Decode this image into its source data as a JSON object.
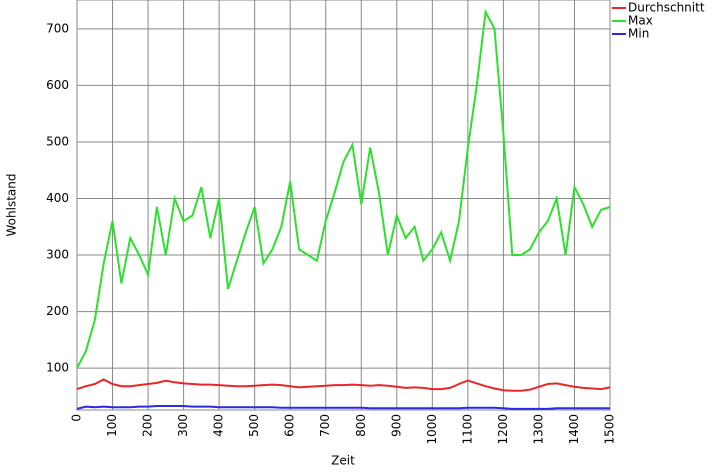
{
  "chart_data": {
    "type": "line",
    "x_label": "Zeit",
    "y_label": "Wohlstand",
    "x": [
      0,
      25,
      50,
      75,
      100,
      125,
      150,
      175,
      200,
      225,
      250,
      275,
      300,
      325,
      350,
      375,
      400,
      425,
      450,
      475,
      500,
      525,
      550,
      575,
      600,
      625,
      650,
      675,
      700,
      725,
      750,
      775,
      800,
      825,
      850,
      875,
      900,
      925,
      950,
      975,
      1000,
      1025,
      1050,
      1075,
      1100,
      1125,
      1150,
      1175,
      1200,
      1225,
      1250,
      1275,
      1300,
      1325,
      1350,
      1375,
      1400,
      1425,
      1450,
      1475,
      1500
    ],
    "series": [
      {
        "name": "Durchschnitt",
        "color": "#e5282a",
        "values": [
          63,
          68,
          72,
          80,
          72,
          68,
          68,
          70,
          72,
          74,
          78,
          75,
          73,
          72,
          71,
          71,
          70,
          69,
          68,
          68,
          69,
          70,
          71,
          70,
          68,
          66,
          67,
          68,
          69,
          70,
          70,
          71,
          70,
          69,
          70,
          69,
          67,
          65,
          66,
          65,
          63,
          63,
          65,
          72,
          78,
          73,
          68,
          64,
          61,
          60,
          60,
          62,
          67,
          72,
          73,
          70,
          67,
          65,
          64,
          63,
          66
        ]
      },
      {
        "name": "Max",
        "color": "#2ee02e",
        "values": [
          100,
          130,
          185,
          285,
          360,
          250,
          330,
          300,
          265,
          385,
          300,
          400,
          360,
          370,
          420,
          330,
          400,
          240,
          290,
          340,
          385,
          285,
          310,
          350,
          430,
          310,
          300,
          290,
          360,
          410,
          465,
          495,
          390,
          490,
          410,
          300,
          370,
          330,
          350,
          290,
          310,
          340,
          290,
          360,
          490,
          600,
          730,
          700,
          515,
          300,
          300,
          310,
          340,
          360,
          400,
          300,
          420,
          390,
          350,
          380,
          385
        ]
      },
      {
        "name": "Min",
        "color": "#2a2ae0",
        "values": [
          28,
          32,
          31,
          32,
          31,
          31,
          31,
          32,
          32,
          33,
          33,
          33,
          33,
          32,
          32,
          32,
          31,
          31,
          31,
          31,
          31,
          31,
          31,
          30,
          30,
          30,
          30,
          30,
          30,
          30,
          30,
          30,
          30,
          29,
          29,
          29,
          29,
          29,
          29,
          29,
          29,
          29,
          29,
          29,
          30,
          30,
          30,
          30,
          29,
          28,
          28,
          28,
          28,
          28,
          29,
          29,
          29,
          29,
          29,
          29,
          29
        ]
      }
    ],
    "xlim": [
      0,
      1500
    ],
    "ylim": [
      26,
      751
    ],
    "xticks": [
      0,
      100,
      200,
      300,
      400,
      500,
      600,
      700,
      800,
      900,
      1000,
      1100,
      1200,
      1300,
      1400,
      1500
    ],
    "yticks": [
      100,
      200,
      300,
      400,
      500,
      600,
      700
    ],
    "grid": true,
    "legend": "right"
  }
}
